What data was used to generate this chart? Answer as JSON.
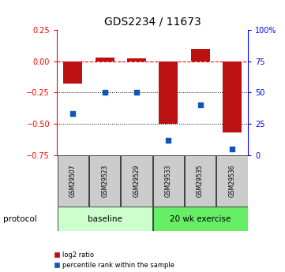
{
  "title": "GDS2234 / 11673",
  "samples": [
    "GSM29507",
    "GSM29523",
    "GSM29529",
    "GSM29533",
    "GSM29535",
    "GSM29536"
  ],
  "log2_ratio": [
    -0.18,
    0.03,
    0.02,
    -0.5,
    0.1,
    -0.57
  ],
  "percentile_rank": [
    33,
    50,
    50,
    12,
    40,
    5
  ],
  "ylim_left": [
    -0.75,
    0.25
  ],
  "ylim_right": [
    0,
    100
  ],
  "bar_color": "#bb1111",
  "dot_color": "#1155bb",
  "baseline_label": "baseline",
  "exercise_label": "20 wk exercise",
  "protocol_label": "protocol",
  "legend_bar": "log2 ratio",
  "legend_dot": "percentile rank within the sample",
  "yticks_left": [
    0.25,
    0,
    -0.25,
    -0.5,
    -0.75
  ],
  "yticks_right": [
    100,
    75,
    50,
    25,
    0
  ],
  "hlines": [
    -0.25,
    -0.5
  ],
  "baseline_color": "#ccffcc",
  "exercise_color": "#66ee66",
  "sample_box_color": "#cccccc"
}
